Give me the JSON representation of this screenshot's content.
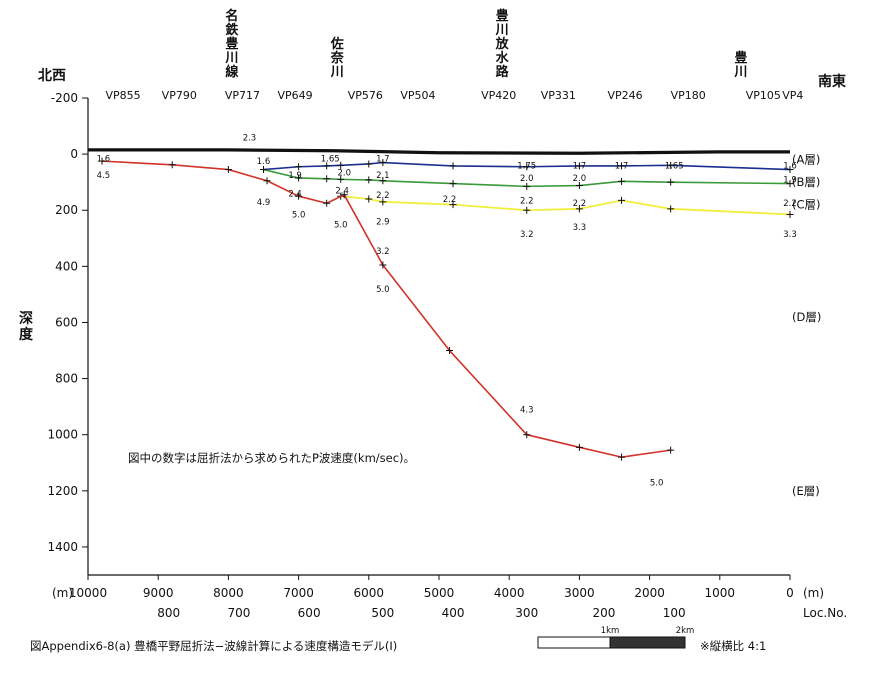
{
  "chart_data": {
    "type": "line",
    "title": "",
    "xlabel": "(m)",
    "ylabel": "深度",
    "xlim": [
      10000,
      0
    ],
    "ylim": [
      -200,
      1500
    ],
    "x_ticks": [
      10000,
      9000,
      8000,
      7000,
      6000,
      5000,
      4000,
      3000,
      2000,
      1000,
      0
    ],
    "x_tick_labels": [
      "10000",
      "9000",
      "8000",
      "7000",
      "6000",
      "5000",
      "4000",
      "3000",
      "2000",
      "1000",
      "0"
    ],
    "y_ticks": [
      -200,
      0,
      200,
      400,
      600,
      800,
      1000,
      1200,
      1400
    ],
    "y_tick_labels": [
      "-200",
      "0",
      "200",
      "400",
      "600",
      "800",
      "1000",
      "1200",
      "1400"
    ],
    "x_unit_left": "(m)",
    "x_unit_right": "(m)",
    "loc": {
      "label": "Loc.No.",
      "ticks": [
        {
          "x": 8850,
          "label": "800"
        },
        {
          "x": 7850,
          "label": "700"
        },
        {
          "x": 6850,
          "label": "600"
        },
        {
          "x": 5800,
          "label": "500"
        },
        {
          "x": 4800,
          "label": "400"
        },
        {
          "x": 3750,
          "label": "300"
        },
        {
          "x": 2650,
          "label": "200"
        },
        {
          "x": 1650,
          "label": "100"
        }
      ]
    },
    "direction_left": "北西",
    "direction_right": "南東",
    "vp_labels": [
      {
        "x": 9500,
        "label": "VP855"
      },
      {
        "x": 8700,
        "label": "VP790"
      },
      {
        "x": 7800,
        "label": "VP717"
      },
      {
        "x": 7050,
        "label": "VP649"
      },
      {
        "x": 6050,
        "label": "VP576"
      },
      {
        "x": 5300,
        "label": "VP504"
      },
      {
        "x": 4150,
        "label": "VP420"
      },
      {
        "x": 3300,
        "label": "VP331"
      },
      {
        "x": 2350,
        "label": "VP246"
      },
      {
        "x": 1450,
        "label": "VP180"
      },
      {
        "x": 380,
        "label": "VP105"
      },
      {
        "x": -40,
        "label": "VP4"
      }
    ],
    "places": [
      {
        "x": 7950,
        "label": "名鉄豊川線"
      },
      {
        "x": 6450,
        "label": "佐奈川"
      },
      {
        "x": 4100,
        "label": "豊川放水路"
      },
      {
        "x": 700,
        "label": "豊川"
      }
    ],
    "series": [
      {
        "name": "地表",
        "color": "#111111",
        "x": [
          10000,
          8000,
          6500,
          5000,
          3000,
          1000,
          0
        ],
        "y": [
          -15,
          -15,
          -12,
          -5,
          -3,
          -8,
          -8
        ]
      },
      {
        "name": "(A層)",
        "color": "#1a2f8f",
        "x": [
          7500,
          7000,
          6600,
          6400,
          6000,
          5800,
          4800,
          3750,
          3000,
          2400,
          1700,
          0
        ],
        "y": [
          55,
          45,
          42,
          40,
          35,
          30,
          42,
          45,
          42,
          42,
          40,
          55
        ]
      },
      {
        "name": "(B層)",
        "color": "#3a9a3a",
        "x": [
          7500,
          7000,
          6600,
          6400,
          6000,
          5800,
          4800,
          3750,
          3000,
          2400,
          1700,
          0
        ],
        "y": [
          55,
          85,
          88,
          90,
          92,
          95,
          105,
          115,
          112,
          97,
          100,
          105
        ]
      },
      {
        "name": "(C層)",
        "color": "#f2ee3c",
        "x": [
          6400,
          6000,
          5800,
          4800,
          3750,
          3000,
          2400,
          1700,
          0
        ],
        "y": [
          150,
          160,
          170,
          180,
          200,
          195,
          165,
          195,
          215
        ]
      },
      {
        "name": "(E層)",
        "color": "#d2332a",
        "x": [
          9800,
          8800,
          8000,
          7450,
          7000,
          6600,
          6350,
          5800,
          4850,
          3750,
          3000,
          2400,
          1700
        ],
        "y": [
          25,
          38,
          55,
          95,
          150,
          175,
          145,
          395,
          700,
          1000,
          1045,
          1080,
          1055
        ]
      }
    ],
    "layer_labels": [
      {
        "depth": 20,
        "label": "(A層)"
      },
      {
        "depth": 100,
        "label": "(B層)"
      },
      {
        "depth": 180,
        "label": "(C層)"
      },
      {
        "depth": 580,
        "label": "(D層)"
      },
      {
        "depth": 1200,
        "label": "(E層)"
      }
    ],
    "velocity_labels": [
      {
        "x": 9780,
        "y": 15,
        "v": "1.6"
      },
      {
        "x": 9780,
        "y": 75,
        "v": "4.5"
      },
      {
        "x": 7700,
        "y": -60,
        "v": "2.3"
      },
      {
        "x": 7500,
        "y": 25,
        "v": "1.6"
      },
      {
        "x": 7050,
        "y": 75,
        "v": "1.9"
      },
      {
        "x": 6550,
        "y": 15,
        "v": "1.65"
      },
      {
        "x": 6350,
        "y": 65,
        "v": "2.0"
      },
      {
        "x": 5800,
        "y": 15,
        "v": "1.7"
      },
      {
        "x": 5800,
        "y": 75,
        "v": "2.1"
      },
      {
        "x": 7050,
        "y": 140,
        "v": "2.4"
      },
      {
        "x": 6380,
        "y": 130,
        "v": "2.4"
      },
      {
        "x": 5800,
        "y": 145,
        "v": "2.2"
      },
      {
        "x": 4850,
        "y": 160,
        "v": "2.2"
      },
      {
        "x": 3750,
        "y": 40,
        "v": "1.75"
      },
      {
        "x": 3750,
        "y": 85,
        "v": "2.0"
      },
      {
        "x": 3750,
        "y": 165,
        "v": "2.2"
      },
      {
        "x": 3000,
        "y": 40,
        "v": "1.7"
      },
      {
        "x": 3000,
        "y": 85,
        "v": "2.0"
      },
      {
        "x": 3000,
        "y": 175,
        "v": "2.2"
      },
      {
        "x": 2400,
        "y": 40,
        "v": "1.7"
      },
      {
        "x": 1650,
        "y": 40,
        "v": "1.65"
      },
      {
        "x": 0,
        "y": 40,
        "v": "1.6"
      },
      {
        "x": 0,
        "y": 90,
        "v": "1.9"
      },
      {
        "x": 0,
        "y": 175,
        "v": "2.2"
      },
      {
        "x": 0,
        "y": 285,
        "v": "3.3"
      },
      {
        "x": 7500,
        "y": 170,
        "v": "4.9"
      },
      {
        "x": 7000,
        "y": 215,
        "v": "5.0"
      },
      {
        "x": 6400,
        "y": 250,
        "v": "5.0"
      },
      {
        "x": 5800,
        "y": 240,
        "v": "2.9"
      },
      {
        "x": 5800,
        "y": 345,
        "v": "3.2"
      },
      {
        "x": 5800,
        "y": 480,
        "v": "5.0"
      },
      {
        "x": 3750,
        "y": 285,
        "v": "3.2"
      },
      {
        "x": 3000,
        "y": 260,
        "v": "3.3"
      },
      {
        "x": 3750,
        "y": 910,
        "v": "4.3"
      },
      {
        "x": 1900,
        "y": 1170,
        "v": "5.0"
      }
    ],
    "annotation": "図中の数字は屈折法から求められたP波速度(km/sec)。",
    "caption": "図Appendix6-8(a)  豊橋平野屈折法−波線計算による速度構造モデル(Ⅰ)",
    "scale_bar": {
      "label_1": "1km",
      "label_2": "2km"
    },
    "ratio_note": "※縦横比  4:1"
  }
}
